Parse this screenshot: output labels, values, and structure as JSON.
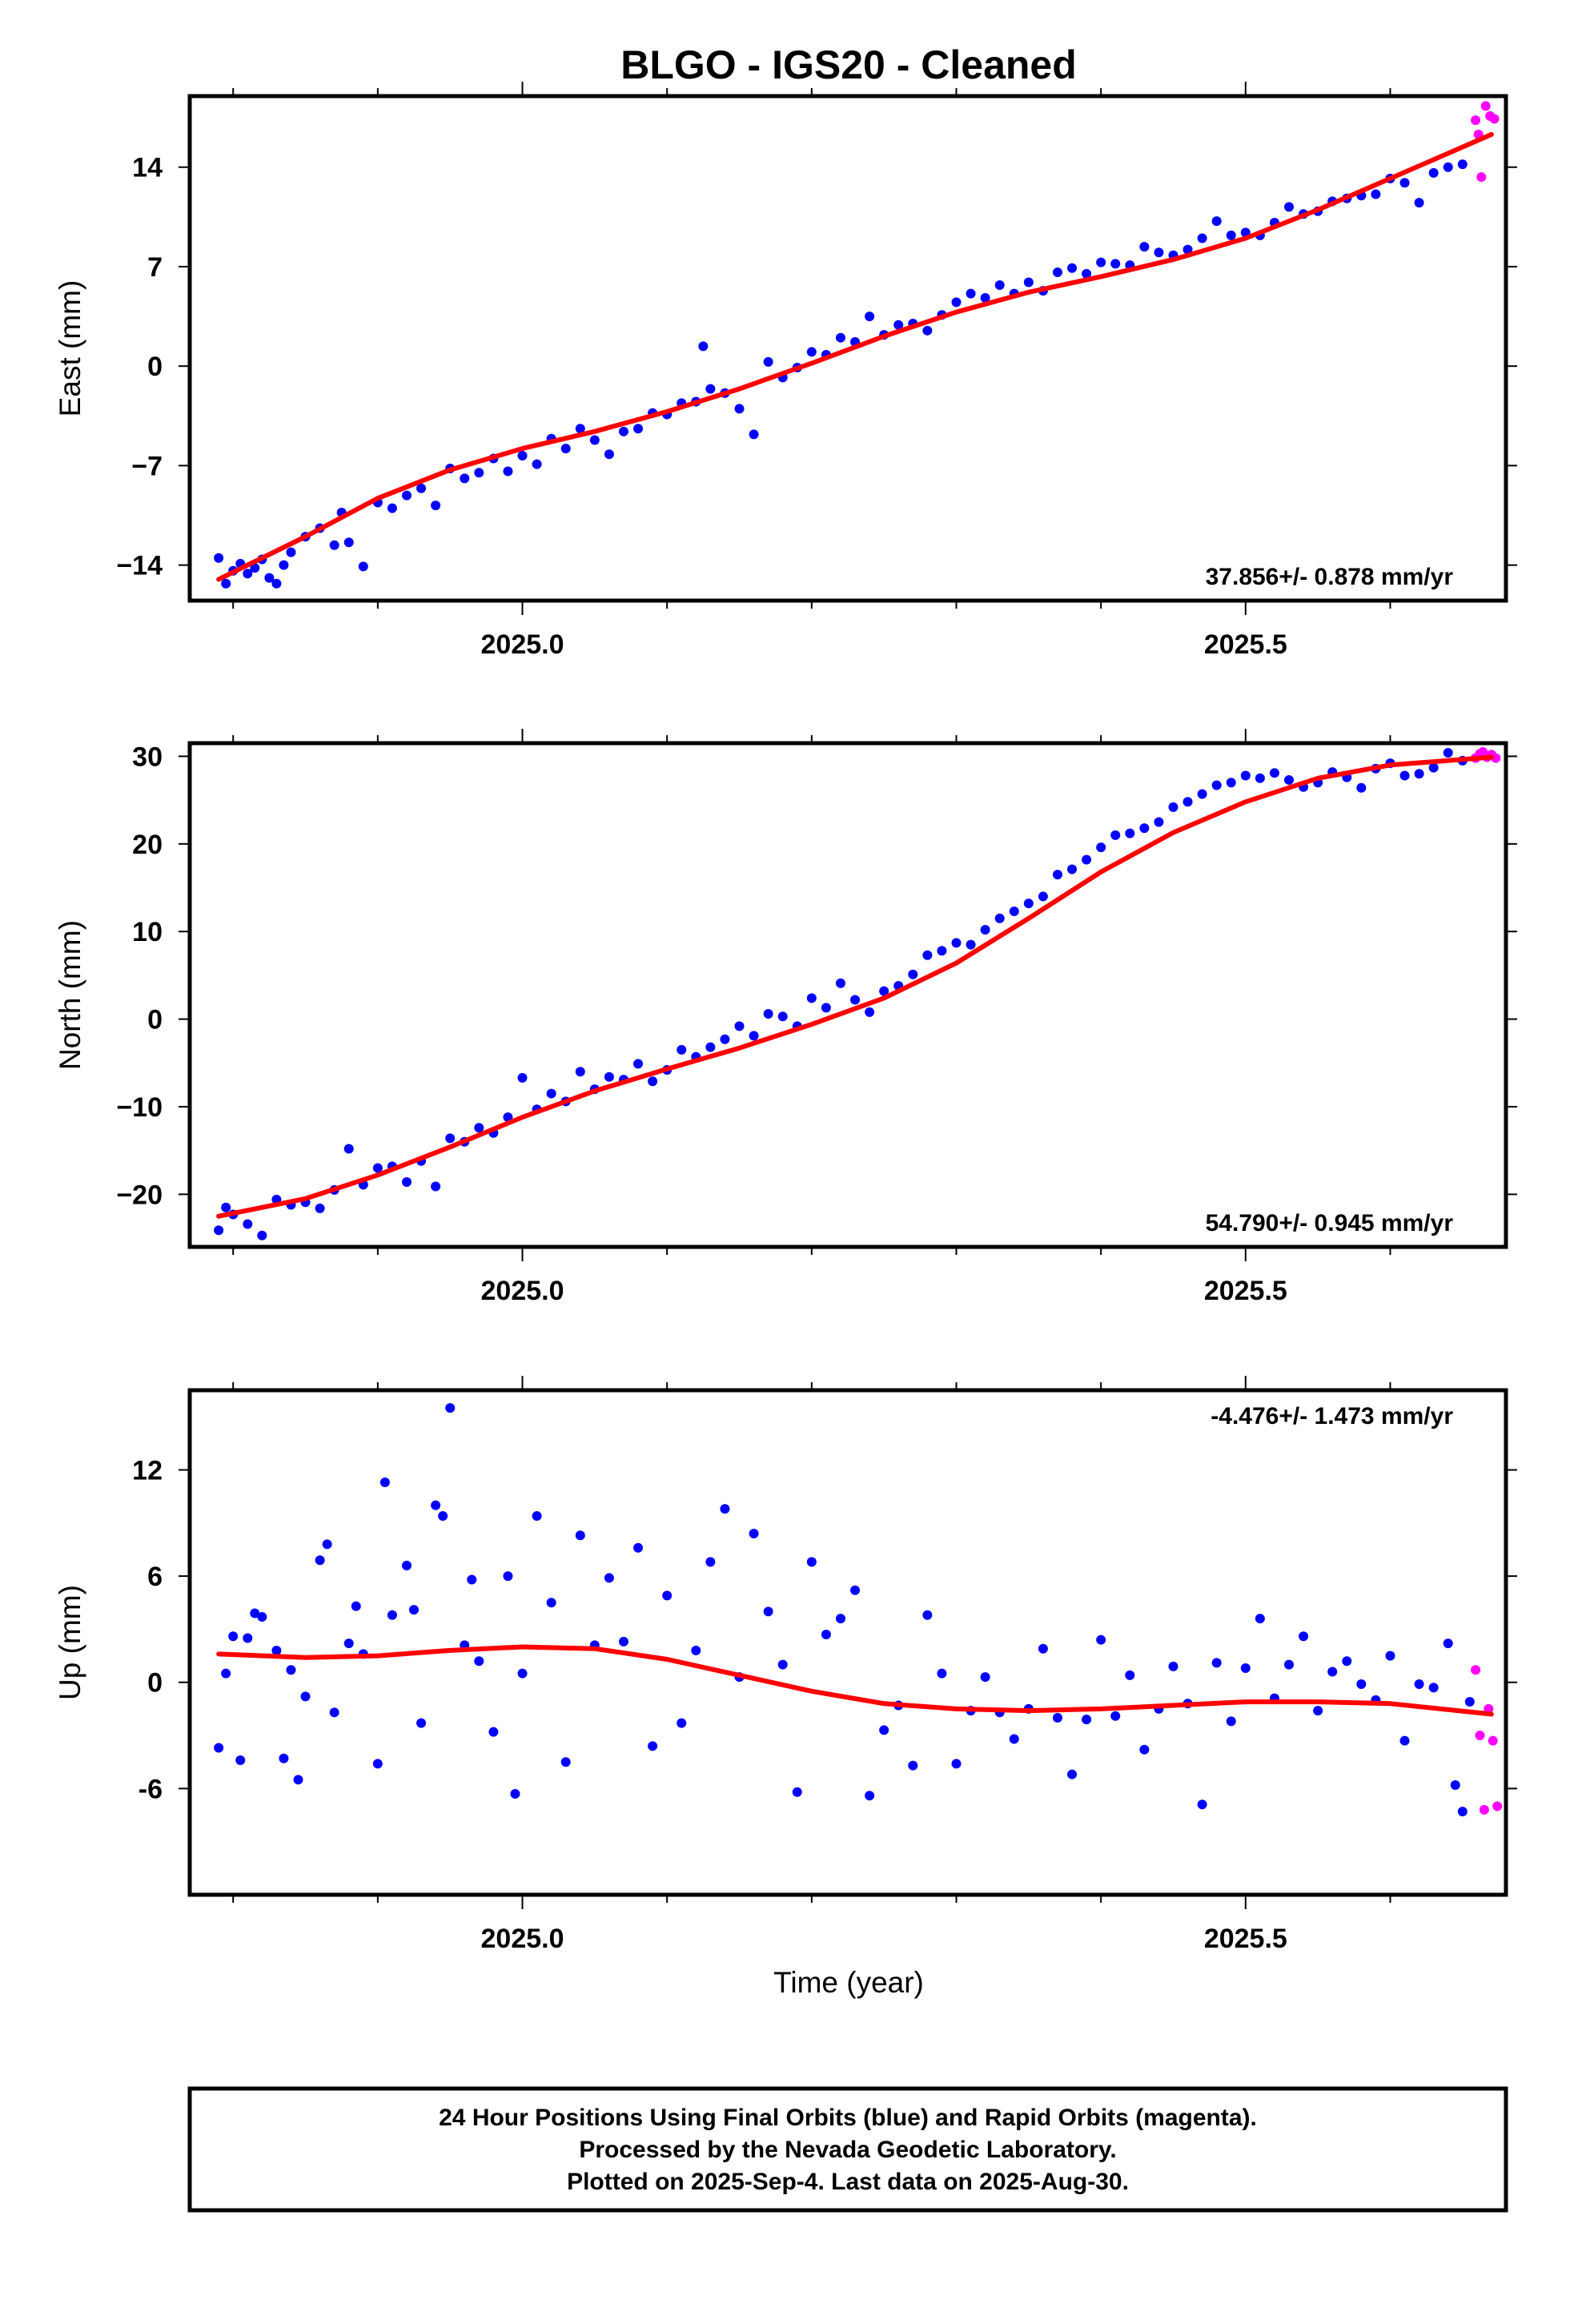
{
  "title": "BLGO  - IGS20 - Cleaned",
  "xlabel": "Time (year)",
  "footer": {
    "line1": "24 Hour Positions Using Final Orbits (blue) and Rapid Orbits (magenta).",
    "line2": "Processed by the Nevada Geodetic Laboratory.",
    "line3": "Plotted on 2025-Sep-4. Last data on 2025-Aug-30."
  },
  "colors": {
    "final": "#0000ff",
    "rapid": "#ff00ff",
    "fit": "#ff0000",
    "frame": "#000000"
  },
  "chart_data": [
    {
      "type": "scatter",
      "panel": "east",
      "ylabel": "East (mm)",
      "rate_text": "37.856+/- 0.878 mm/yr",
      "xlim": [
        2024.77,
        2025.68
      ],
      "ylim": [
        -16.5,
        19.0
      ],
      "x_ticks": [
        2025.0,
        2025.5
      ],
      "x_tick_labels": [
        "2025.0",
        "2025.5"
      ],
      "y_ticks": [
        14,
        7,
        0,
        -7,
        -14
      ],
      "y_tick_labels": [
        "14",
        "7",
        "0",
        "−7",
        "−14"
      ],
      "x_minor_ticks": [
        2024.8,
        2024.9,
        2025.1,
        2025.2,
        2025.3,
        2025.4,
        2025.6
      ],
      "fit": {
        "x": [
          2024.79,
          2024.85,
          2024.9,
          2024.95,
          2025.0,
          2025.05,
          2025.1,
          2025.15,
          2025.2,
          2025.25,
          2025.3,
          2025.35,
          2025.4,
          2025.45,
          2025.5,
          2025.55,
          2025.6,
          2025.67
        ],
        "y": [
          -15.0,
          -12.0,
          -9.3,
          -7.3,
          -5.8,
          -4.6,
          -3.2,
          -1.6,
          0.2,
          2.1,
          3.8,
          5.2,
          6.3,
          7.5,
          9.0,
          11.0,
          13.2,
          16.3
        ]
      },
      "final": {
        "x": [
          2024.79,
          2024.795,
          2024.8,
          2024.805,
          2024.81,
          2024.815,
          2024.82,
          2024.825,
          2024.83,
          2024.835,
          2024.84,
          2024.85,
          2024.86,
          2024.87,
          2024.875,
          2024.88,
          2024.89,
          2024.9,
          2024.91,
          2024.92,
          2024.93,
          2024.94,
          2024.95,
          2024.96,
          2024.97,
          2024.98,
          2024.99,
          2025.0,
          2025.01,
          2025.02,
          2025.03,
          2025.04,
          2025.05,
          2025.06,
          2025.07,
          2025.08,
          2025.09,
          2025.1,
          2025.11,
          2025.12,
          2025.125,
          2025.13,
          2025.14,
          2025.15,
          2025.16,
          2025.17,
          2025.18,
          2025.19,
          2025.2,
          2025.21,
          2025.22,
          2025.23,
          2025.24,
          2025.25,
          2025.26,
          2025.27,
          2025.28,
          2025.29,
          2025.3,
          2025.31,
          2025.32,
          2025.33,
          2025.34,
          2025.35,
          2025.36,
          2025.37,
          2025.38,
          2025.39,
          2025.4,
          2025.41,
          2025.42,
          2025.43,
          2025.44,
          2025.45,
          2025.46,
          2025.47,
          2025.48,
          2025.49,
          2025.5,
          2025.51,
          2025.52,
          2025.53,
          2025.54,
          2025.55,
          2025.56,
          2025.57,
          2025.58,
          2025.59,
          2025.6,
          2025.61,
          2025.62,
          2025.63,
          2025.64,
          2025.65
        ],
        "y": [
          -13.5,
          -15.3,
          -14.4,
          -13.9,
          -14.6,
          -14.2,
          -13.6,
          -14.9,
          -15.3,
          -14.0,
          -13.1,
          -12.0,
          -11.4,
          -12.6,
          -10.3,
          -12.4,
          -14.1,
          -9.6,
          -10.0,
          -9.1,
          -8.6,
          -9.8,
          -7.2,
          -7.9,
          -7.5,
          -6.5,
          -7.4,
          -6.3,
          -6.9,
          -5.1,
          -5.8,
          -4.4,
          -5.2,
          -6.2,
          -4.6,
          -4.4,
          -3.3,
          -3.4,
          -2.6,
          -2.5,
          1.4,
          -1.6,
          -1.9,
          -3.0,
          -4.8,
          0.3,
          -0.8,
          -0.1,
          1.0,
          0.8,
          2.0,
          1.7,
          3.5,
          2.2,
          2.9,
          3.0,
          2.5,
          3.6,
          4.5,
          5.1,
          4.8,
          5.7,
          5.1,
          5.9,
          5.3,
          6.6,
          6.9,
          6.5,
          7.3,
          7.2,
          7.1,
          8.4,
          8.0,
          7.8,
          8.2,
          9.0,
          10.2,
          9.2,
          9.4,
          9.2,
          10.1,
          11.2,
          10.7,
          10.9,
          11.6,
          11.8,
          12.0,
          12.1,
          13.2,
          12.9,
          11.5,
          13.6,
          14.0,
          14.2
        ]
      },
      "rapid": {
        "x": [
          2025.659,
          2025.661,
          2025.663,
          2025.666,
          2025.669,
          2025.672
        ],
        "y": [
          17.3,
          16.3,
          13.3,
          18.3,
          17.6,
          17.4
        ]
      }
    },
    {
      "type": "scatter",
      "panel": "north",
      "ylabel": "North (mm)",
      "rate_text": "54.790+/- 0.945 mm/yr",
      "xlim": [
        2024.77,
        2025.68
      ],
      "ylim": [
        -26.0,
        31.5
      ],
      "x_ticks": [
        2025.0,
        2025.5
      ],
      "x_tick_labels": [
        "2025.0",
        "2025.5"
      ],
      "y_ticks": [
        30,
        20,
        10,
        0,
        -10,
        -20
      ],
      "y_tick_labels": [
        "30",
        "20",
        "10",
        "0",
        "−10",
        "−20"
      ],
      "x_minor_ticks": [
        2024.8,
        2024.9,
        2025.1,
        2025.2,
        2025.3,
        2025.4,
        2025.6
      ],
      "fit": {
        "x": [
          2024.79,
          2024.85,
          2024.9,
          2024.95,
          2025.0,
          2025.05,
          2025.1,
          2025.15,
          2025.2,
          2025.25,
          2025.3,
          2025.35,
          2025.4,
          2025.45,
          2025.5,
          2025.55,
          2025.6,
          2025.67
        ],
        "y": [
          -22.5,
          -20.5,
          -17.8,
          -14.6,
          -11.2,
          -8.2,
          -5.7,
          -3.3,
          -0.6,
          2.4,
          6.4,
          11.5,
          16.8,
          21.3,
          24.8,
          27.5,
          29.0,
          29.9
        ]
      },
      "final": {
        "x": [
          2024.79,
          2024.795,
          2024.8,
          2024.81,
          2024.82,
          2024.83,
          2024.84,
          2024.85,
          2024.86,
          2024.87,
          2024.88,
          2024.89,
          2024.9,
          2024.91,
          2024.92,
          2024.93,
          2024.94,
          2024.95,
          2024.96,
          2024.97,
          2024.98,
          2024.99,
          2025.0,
          2025.01,
          2025.02,
          2025.03,
          2025.04,
          2025.05,
          2025.06,
          2025.07,
          2025.08,
          2025.09,
          2025.1,
          2025.11,
          2025.12,
          2025.13,
          2025.14,
          2025.15,
          2025.16,
          2025.17,
          2025.18,
          2025.19,
          2025.2,
          2025.21,
          2025.22,
          2025.23,
          2025.24,
          2025.25,
          2025.26,
          2025.27,
          2025.28,
          2025.29,
          2025.3,
          2025.31,
          2025.32,
          2025.33,
          2025.34,
          2025.35,
          2025.36,
          2025.37,
          2025.38,
          2025.39,
          2025.4,
          2025.41,
          2025.42,
          2025.43,
          2025.44,
          2025.45,
          2025.46,
          2025.47,
          2025.48,
          2025.49,
          2025.5,
          2025.51,
          2025.52,
          2025.53,
          2025.54,
          2025.55,
          2025.56,
          2025.57,
          2025.58,
          2025.59,
          2025.6,
          2025.61,
          2025.62,
          2025.63,
          2025.64,
          2025.65
        ],
        "y": [
          -24.1,
          -21.5,
          -22.3,
          -23.4,
          -24.7,
          -20.6,
          -21.2,
          -20.9,
          -21.6,
          -19.5,
          -14.8,
          -18.9,
          -17.0,
          -16.8,
          -18.6,
          -16.2,
          -19.1,
          -13.6,
          -14.0,
          -12.4,
          -13.0,
          -11.2,
          -6.7,
          -10.3,
          -8.5,
          -9.4,
          -6.0,
          -8.0,
          -6.6,
          -6.9,
          -5.1,
          -7.1,
          -5.8,
          -3.5,
          -4.3,
          -3.2,
          -2.3,
          -0.8,
          -1.9,
          0.6,
          0.3,
          -0.8,
          2.4,
          1.3,
          4.1,
          2.2,
          0.8,
          3.2,
          3.8,
          5.1,
          7.3,
          7.8,
          8.7,
          8.5,
          10.2,
          11.5,
          12.3,
          13.2,
          14.0,
          16.5,
          17.1,
          18.2,
          19.6,
          21.0,
          21.2,
          21.8,
          22.5,
          24.2,
          24.8,
          25.7,
          26.7,
          27.0,
          27.8,
          27.5,
          28.1,
          27.3,
          26.5,
          27.0,
          28.2,
          27.6,
          26.4,
          28.6,
          29.2,
          27.8,
          28.0,
          28.7,
          30.4,
          29.5
        ]
      },
      "rapid": {
        "x": [
          2025.659,
          2025.662,
          2025.664,
          2025.667,
          2025.67,
          2025.673
        ],
        "y": [
          29.8,
          30.3,
          30.5,
          29.9,
          30.2,
          29.8
        ]
      }
    },
    {
      "type": "scatter",
      "panel": "up",
      "ylabel": "Up (mm)",
      "rate_text": "-4.476+/- 1.473 mm/yr",
      "xlim": [
        2024.77,
        2025.68
      ],
      "ylim": [
        -12.0,
        16.5
      ],
      "x_ticks": [
        2025.0,
        2025.5
      ],
      "x_tick_labels": [
        "2025.0",
        "2025.5"
      ],
      "y_ticks": [
        12,
        6,
        0,
        -6
      ],
      "y_tick_labels": [
        "12",
        "6",
        "0",
        "-6"
      ],
      "x_minor_ticks": [
        2024.8,
        2024.9,
        2025.1,
        2025.2,
        2025.3,
        2025.4,
        2025.6
      ],
      "fit": {
        "x": [
          2024.79,
          2024.85,
          2024.9,
          2024.95,
          2025.0,
          2025.05,
          2025.1,
          2025.15,
          2025.2,
          2025.25,
          2025.3,
          2025.35,
          2025.4,
          2025.45,
          2025.5,
          2025.55,
          2025.6,
          2025.67
        ],
        "y": [
          1.6,
          1.4,
          1.5,
          1.8,
          2.0,
          1.9,
          1.3,
          0.4,
          -0.5,
          -1.2,
          -1.5,
          -1.6,
          -1.5,
          -1.3,
          -1.1,
          -1.1,
          -1.2,
          -1.8
        ]
      },
      "final": {
        "x": [
          2024.79,
          2024.795,
          2024.8,
          2024.805,
          2024.81,
          2024.815,
          2024.82,
          2024.83,
          2024.835,
          2024.84,
          2024.845,
          2024.85,
          2024.86,
          2024.865,
          2024.87,
          2024.88,
          2024.885,
          2024.89,
          2024.9,
          2024.905,
          2024.91,
          2024.92,
          2024.925,
          2024.93,
          2024.94,
          2024.945,
          2024.95,
          2024.96,
          2024.965,
          2024.97,
          2024.98,
          2024.99,
          2024.995,
          2025.0,
          2025.01,
          2025.02,
          2025.03,
          2025.04,
          2025.05,
          2025.06,
          2025.07,
          2025.08,
          2025.09,
          2025.1,
          2025.11,
          2025.12,
          2025.13,
          2025.14,
          2025.15,
          2025.16,
          2025.17,
          2025.18,
          2025.19,
          2025.2,
          2025.21,
          2025.22,
          2025.23,
          2025.24,
          2025.25,
          2025.26,
          2025.27,
          2025.28,
          2025.29,
          2025.3,
          2025.31,
          2025.32,
          2025.33,
          2025.34,
          2025.35,
          2025.36,
          2025.37,
          2025.38,
          2025.39,
          2025.4,
          2025.41,
          2025.42,
          2025.43,
          2025.44,
          2025.45,
          2025.46,
          2025.47,
          2025.48,
          2025.49,
          2025.5,
          2025.51,
          2025.52,
          2025.53,
          2025.54,
          2025.55,
          2025.56,
          2025.57,
          2025.58,
          2025.59,
          2025.6,
          2025.61,
          2025.62,
          2025.63,
          2025.64,
          2025.645,
          2025.65,
          2025.655
        ],
        "y": [
          -3.7,
          0.5,
          2.6,
          -4.4,
          2.5,
          3.9,
          3.7,
          1.8,
          -4.3,
          0.7,
          -5.5,
          -0.8,
          6.9,
          7.8,
          -1.7,
          2.2,
          4.3,
          1.6,
          -4.6,
          11.3,
          3.8,
          6.6,
          4.1,
          -2.3,
          10.0,
          9.4,
          15.5,
          2.1,
          5.8,
          1.2,
          -2.8,
          6.0,
          -6.3,
          0.5,
          9.4,
          4.5,
          -4.5,
          8.3,
          2.1,
          5.9,
          2.3,
          7.6,
          -3.6,
          4.9,
          -2.3,
          1.8,
          6.8,
          9.8,
          0.3,
          8.4,
          4.0,
          1.0,
          -6.2,
          6.8,
          2.7,
          3.6,
          5.2,
          -6.4,
          -2.7,
          -1.3,
          -4.7,
          3.8,
          0.5,
          -4.6,
          -1.6,
          0.3,
          -1.7,
          -3.2,
          -1.5,
          1.9,
          -2.0,
          -5.2,
          -2.1,
          2.4,
          -1.9,
          0.4,
          -3.8,
          -1.5,
          0.9,
          -1.2,
          -6.9,
          1.1,
          -2.2,
          0.8,
          3.6,
          -0.9,
          1.0,
          2.6,
          -1.6,
          0.6,
          1.2,
          -0.1,
          -1.0,
          1.5,
          -3.3,
          -0.1,
          -0.3,
          2.2,
          -5.8,
          -7.3,
          -1.1
        ]
      },
      "rapid": {
        "x": [
          2025.659,
          2025.662,
          2025.665,
          2025.668,
          2025.671,
          2025.674
        ],
        "y": [
          0.7,
          -3.0,
          -7.2,
          -1.5,
          -3.3,
          -7.0
        ]
      }
    }
  ]
}
